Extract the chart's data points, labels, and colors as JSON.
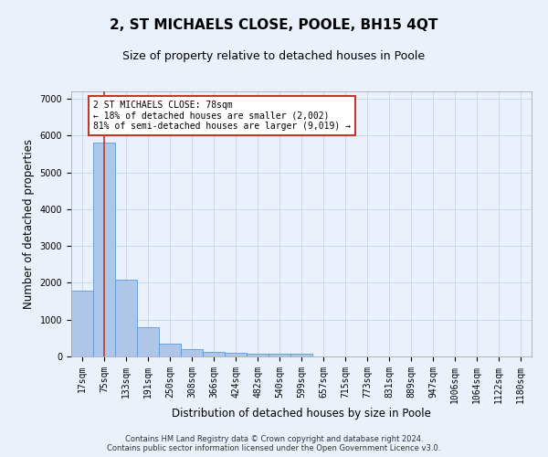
{
  "title": "2, ST MICHAELS CLOSE, POOLE, BH15 4QT",
  "subtitle": "Size of property relative to detached houses in Poole",
  "xlabel": "Distribution of detached houses by size in Poole",
  "ylabel": "Number of detached properties",
  "categories": [
    "17sqm",
    "75sqm",
    "133sqm",
    "191sqm",
    "250sqm",
    "308sqm",
    "366sqm",
    "424sqm",
    "482sqm",
    "540sqm",
    "599sqm",
    "657sqm",
    "715sqm",
    "773sqm",
    "831sqm",
    "889sqm",
    "947sqm",
    "1006sqm",
    "1064sqm",
    "1122sqm",
    "1180sqm"
  ],
  "values": [
    1780,
    5820,
    2080,
    800,
    340,
    190,
    120,
    100,
    85,
    70,
    65,
    0,
    0,
    0,
    0,
    0,
    0,
    0,
    0,
    0,
    0
  ],
  "bar_color": "#aec6e8",
  "bar_edge_color": "#5b9bd5",
  "vline_x": 1,
  "vline_color": "#c0392b",
  "annotation_text": "2 ST MICHAELS CLOSE: 78sqm\n← 18% of detached houses are smaller (2,002)\n81% of semi-detached houses are larger (9,019) →",
  "annotation_box_color": "#c0392b",
  "ylim": [
    0,
    7200
  ],
  "yticks": [
    0,
    1000,
    2000,
    3000,
    4000,
    5000,
    6000,
    7000
  ],
  "footer_line1": "Contains HM Land Registry data © Crown copyright and database right 2024.",
  "footer_line2": "Contains public sector information licensed under the Open Government Licence v3.0.",
  "background_color": "#eaf1fb",
  "plot_bg_color": "#eaf1fb",
  "grid_color": "#c8d4e8",
  "title_fontsize": 11,
  "subtitle_fontsize": 9,
  "tick_fontsize": 7,
  "label_fontsize": 8.5,
  "annotation_fontsize": 7,
  "footer_fontsize": 6
}
